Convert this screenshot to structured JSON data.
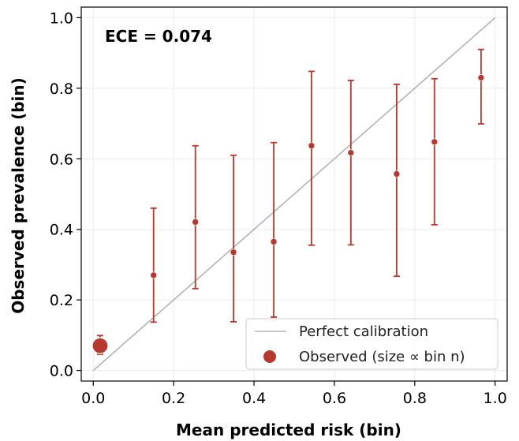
{
  "chart_data": {
    "type": "scatter",
    "xlabel": "Mean predicted risk (bin)",
    "ylabel": "Observed prevalence (bin)",
    "xlim": [
      -0.03,
      1.03
    ],
    "ylim": [
      -0.03,
      1.03
    ],
    "xticks": [
      0.0,
      0.2,
      0.4,
      0.6,
      0.8,
      1.0
    ],
    "yticks": [
      0.0,
      0.2,
      0.4,
      0.6,
      0.8,
      1.0
    ],
    "xtick_labels": [
      "0.0",
      "0.2",
      "0.4",
      "0.6",
      "0.8",
      "1.0"
    ],
    "ytick_labels": [
      "0.0",
      "0.2",
      "0.4",
      "0.6",
      "0.8",
      "1.0"
    ],
    "grid": true,
    "annotation": "ECE = 0.074",
    "legend_position": "lower-right",
    "legend": {
      "line_label": "Perfect calibration",
      "points_label": "Observed (size ∝ bin n)"
    },
    "colors": {
      "points": "#b5392f",
      "diagonal": "#b3b3b3"
    },
    "points": [
      {
        "x": 0.017,
        "y": 0.07,
        "lo": 0.046,
        "hi": 0.099,
        "large": true
      },
      {
        "x": 0.15,
        "y": 0.27,
        "lo": 0.137,
        "hi": 0.46,
        "large": false
      },
      {
        "x": 0.254,
        "y": 0.421,
        "lo": 0.232,
        "hi": 0.637,
        "large": false
      },
      {
        "x": 0.349,
        "y": 0.335,
        "lo": 0.138,
        "hi": 0.61,
        "large": false
      },
      {
        "x": 0.449,
        "y": 0.365,
        "lo": 0.151,
        "hi": 0.646,
        "large": false
      },
      {
        "x": 0.543,
        "y": 0.637,
        "lo": 0.355,
        "hi": 0.848,
        "large": false
      },
      {
        "x": 0.641,
        "y": 0.617,
        "lo": 0.356,
        "hi": 0.822,
        "large": false
      },
      {
        "x": 0.755,
        "y": 0.557,
        "lo": 0.267,
        "hi": 0.811,
        "large": false
      },
      {
        "x": 0.849,
        "y": 0.648,
        "lo": 0.413,
        "hi": 0.827,
        "large": false
      },
      {
        "x": 0.965,
        "y": 0.83,
        "lo": 0.699,
        "hi": 0.91,
        "large": false
      }
    ]
  }
}
